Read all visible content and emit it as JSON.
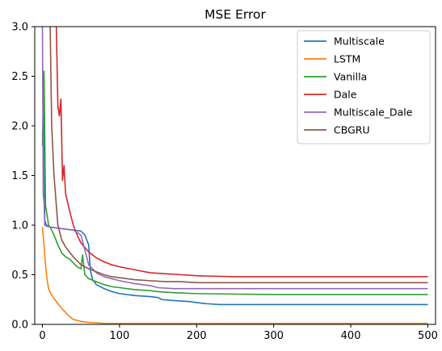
{
  "chart_data": {
    "type": "line",
    "title": "MSE Error",
    "xlabel": "",
    "ylabel": "",
    "xlim": [
      -10,
      510
    ],
    "ylim": [
      0,
      3
    ],
    "x_ticks": [
      0,
      100,
      200,
      300,
      400,
      500
    ],
    "y_ticks": [
      0.0,
      0.5,
      1.0,
      1.5,
      2.0,
      2.5,
      3.0
    ],
    "x_tick_labels": [
      "0",
      "100",
      "200",
      "300",
      "400",
      "500"
    ],
    "y_tick_labels": [
      "0.0",
      "0.5",
      "1.0",
      "1.5",
      "2.0",
      "2.5",
      "3.0"
    ],
    "grid": false,
    "legend_position": "top-right",
    "series": [
      {
        "name": "Multiscale",
        "color": "#1f77b4",
        "points": [
          [
            0,
            1.9
          ],
          [
            2,
            2.2
          ],
          [
            3,
            1.05
          ],
          [
            5,
            1.0
          ],
          [
            10,
            0.98
          ],
          [
            20,
            0.97
          ],
          [
            30,
            0.96
          ],
          [
            40,
            0.95
          ],
          [
            50,
            0.94
          ],
          [
            55,
            0.9
          ],
          [
            60,
            0.8
          ],
          [
            62,
            0.55
          ],
          [
            65,
            0.45
          ],
          [
            70,
            0.4
          ],
          [
            80,
            0.36
          ],
          [
            90,
            0.33
          ],
          [
            100,
            0.31
          ],
          [
            120,
            0.29
          ],
          [
            140,
            0.28
          ],
          [
            150,
            0.27
          ],
          [
            155,
            0.25
          ],
          [
            170,
            0.24
          ],
          [
            190,
            0.23
          ],
          [
            200,
            0.22
          ],
          [
            210,
            0.21
          ],
          [
            230,
            0.2
          ],
          [
            300,
            0.2
          ],
          [
            400,
            0.2
          ],
          [
            500,
            0.2
          ]
        ]
      },
      {
        "name": "LSTM",
        "color": "#ff7f0e",
        "points": [
          [
            0,
            0.98
          ],
          [
            2,
            0.8
          ],
          [
            4,
            0.6
          ],
          [
            6,
            0.45
          ],
          [
            8,
            0.36
          ],
          [
            10,
            0.32
          ],
          [
            15,
            0.26
          ],
          [
            20,
            0.21
          ],
          [
            25,
            0.16
          ],
          [
            30,
            0.12
          ],
          [
            35,
            0.08
          ],
          [
            40,
            0.05
          ],
          [
            50,
            0.03
          ],
          [
            60,
            0.02
          ],
          [
            80,
            0.01
          ],
          [
            100,
            0.01
          ],
          [
            200,
            0.01
          ],
          [
            300,
            0.01
          ],
          [
            400,
            0.01
          ],
          [
            500,
            0.01
          ]
        ]
      },
      {
        "name": "Vanilla",
        "color": "#2ca02c",
        "points": [
          [
            0,
            1.8
          ],
          [
            2,
            2.55
          ],
          [
            4,
            1.2
          ],
          [
            6,
            1.1
          ],
          [
            8,
            1.0
          ],
          [
            10,
            0.98
          ],
          [
            15,
            0.9
          ],
          [
            20,
            0.8
          ],
          [
            25,
            0.72
          ],
          [
            30,
            0.68
          ],
          [
            35,
            0.66
          ],
          [
            40,
            0.62
          ],
          [
            45,
            0.58
          ],
          [
            50,
            0.56
          ],
          [
            52,
            0.7
          ],
          [
            55,
            0.5
          ],
          [
            60,
            0.46
          ],
          [
            70,
            0.43
          ],
          [
            80,
            0.4
          ],
          [
            90,
            0.38
          ],
          [
            100,
            0.37
          ],
          [
            120,
            0.35
          ],
          [
            140,
            0.34
          ],
          [
            150,
            0.33
          ],
          [
            170,
            0.32
          ],
          [
            200,
            0.31
          ],
          [
            300,
            0.3
          ],
          [
            400,
            0.3
          ],
          [
            500,
            0.3
          ]
        ]
      },
      {
        "name": "Dale",
        "color": "#d62728",
        "points": [
          [
            18,
            3.0
          ],
          [
            20,
            2.2
          ],
          [
            22,
            2.1
          ],
          [
            24,
            2.27
          ],
          [
            26,
            1.45
          ],
          [
            28,
            1.6
          ],
          [
            30,
            1.32
          ],
          [
            35,
            1.15
          ],
          [
            40,
            1.0
          ],
          [
            45,
            0.9
          ],
          [
            50,
            0.82
          ],
          [
            60,
            0.73
          ],
          [
            70,
            0.67
          ],
          [
            80,
            0.63
          ],
          [
            90,
            0.6
          ],
          [
            100,
            0.58
          ],
          [
            120,
            0.55
          ],
          [
            140,
            0.52
          ],
          [
            160,
            0.51
          ],
          [
            180,
            0.5
          ],
          [
            200,
            0.49
          ],
          [
            250,
            0.48
          ],
          [
            300,
            0.48
          ],
          [
            400,
            0.48
          ],
          [
            500,
            0.48
          ]
        ]
      },
      {
        "name": "Multiscale_Dale",
        "color": "#9467bd",
        "points": [
          [
            0,
            3.0
          ],
          [
            1,
            1.3
          ],
          [
            2,
            1.25
          ],
          [
            3,
            1.0
          ],
          [
            5,
            0.99
          ],
          [
            10,
            0.98
          ],
          [
            20,
            0.97
          ],
          [
            30,
            0.96
          ],
          [
            40,
            0.95
          ],
          [
            50,
            0.9
          ],
          [
            60,
            0.6
          ],
          [
            70,
            0.52
          ],
          [
            80,
            0.48
          ],
          [
            90,
            0.46
          ],
          [
            100,
            0.44
          ],
          [
            120,
            0.41
          ],
          [
            140,
            0.39
          ],
          [
            150,
            0.37
          ],
          [
            170,
            0.36
          ],
          [
            200,
            0.36
          ],
          [
            300,
            0.36
          ],
          [
            400,
            0.36
          ],
          [
            500,
            0.36
          ]
        ]
      },
      {
        "name": "CBGRU",
        "color": "#8c564b",
        "points": [
          [
            10,
            3.0
          ],
          [
            12,
            2.0
          ],
          [
            15,
            1.5
          ],
          [
            18,
            1.2
          ],
          [
            20,
            1.0
          ],
          [
            25,
            0.85
          ],
          [
            30,
            0.78
          ],
          [
            40,
            0.68
          ],
          [
            50,
            0.6
          ],
          [
            60,
            0.56
          ],
          [
            70,
            0.53
          ],
          [
            80,
            0.5
          ],
          [
            90,
            0.48
          ],
          [
            100,
            0.47
          ],
          [
            120,
            0.45
          ],
          [
            140,
            0.44
          ],
          [
            160,
            0.43
          ],
          [
            180,
            0.43
          ],
          [
            200,
            0.42
          ],
          [
            300,
            0.42
          ],
          [
            400,
            0.42
          ],
          [
            500,
            0.42
          ]
        ]
      }
    ]
  }
}
